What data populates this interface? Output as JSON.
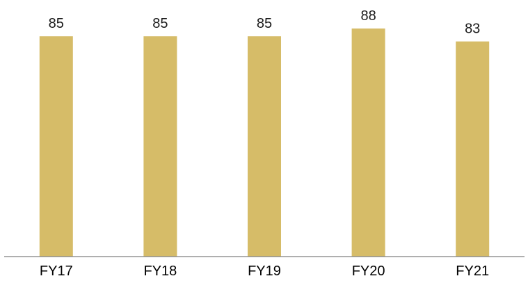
{
  "chart_data": {
    "type": "bar",
    "categories": [
      "FY17",
      "FY18",
      "FY19",
      "FY20",
      "FY21"
    ],
    "values": [
      85,
      85,
      85,
      88,
      83
    ],
    "data_labels": [
      "85",
      "85",
      "85",
      "88",
      "83"
    ],
    "ylim": [
      0,
      88
    ],
    "grid": false,
    "legend": "none",
    "bar_color": "#D6BC68",
    "axis_color": "#7f7f7f"
  }
}
